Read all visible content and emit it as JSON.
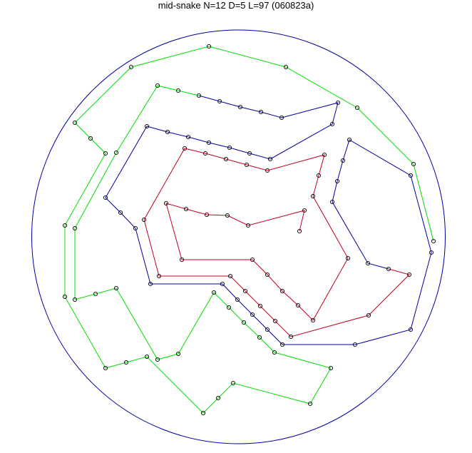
{
  "title": "mid-snake N=12 D=5 L=97 (060823a)",
  "colors": {
    "boundary": "#0000a0",
    "segment_red": "#c00020",
    "segment_blue": "#0000a0",
    "segment_green": "#00dd00",
    "node_outline": "#000000"
  },
  "segments": [
    {
      "color": "segment_red"
    },
    {
      "color": "segment_blue"
    },
    {
      "color": "segment_green"
    }
  ]
}
